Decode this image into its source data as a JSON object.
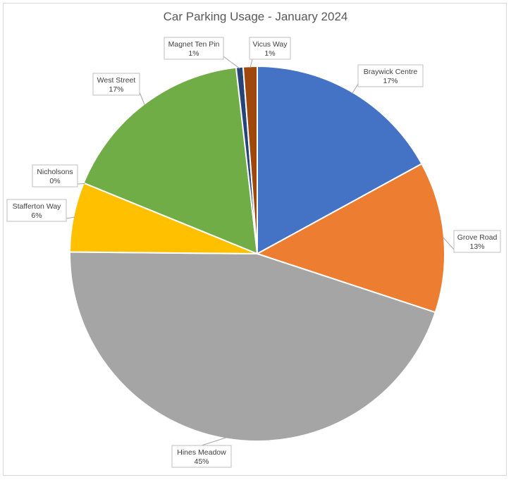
{
  "chart_data": {
    "type": "pie",
    "title": "Car Parking Usage - January 2024",
    "slices": [
      {
        "name": "Braywick Centre",
        "value": 17,
        "label": "17%",
        "color": "#4472C4"
      },
      {
        "name": "Grove Road",
        "value": 13,
        "label": "13%",
        "color": "#ED7D31"
      },
      {
        "name": "Hines Meadow",
        "value": 45,
        "label": "45%",
        "color": "#A5A5A5"
      },
      {
        "name": "Stafferton Way",
        "value": 6,
        "label": "6%",
        "color": "#FFC000"
      },
      {
        "name": "Nicholsons",
        "value": 0,
        "label": "0%",
        "color": "#5B9BD5"
      },
      {
        "name": "West Street",
        "value": 17,
        "label": "17%",
        "color": "#70AD47"
      },
      {
        "name": "Magnet Ten Pin",
        "value": 0.6,
        "label": "1%",
        "color": "#264478"
      },
      {
        "name": "Vicus Way",
        "value": 1.2,
        "label": "1%",
        "color": "#9E480E"
      }
    ]
  }
}
